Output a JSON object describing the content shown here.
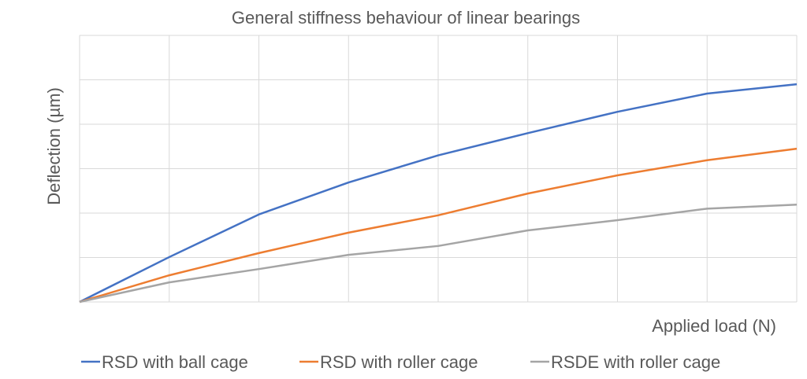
{
  "chart_data": {
    "type": "line",
    "title": "General stiffness behaviour of linear bearings",
    "xlabel": "Applied load (N)",
    "ylabel": "Deflection (µm)",
    "x": [
      0,
      1,
      2,
      3,
      4,
      5,
      6,
      7,
      8
    ],
    "xlim": [
      0,
      8
    ],
    "ylim": [
      0,
      6
    ],
    "grid": true,
    "tick_labels_shown": false,
    "legend_position": "bottom",
    "series": [
      {
        "name": "RSD with ball cage",
        "color": "#4472C4",
        "values": [
          0,
          1.01,
          1.97,
          2.69,
          3.3,
          3.8,
          4.28,
          4.69,
          4.9
        ]
      },
      {
        "name": "RSD with roller cage",
        "color": "#ED7D31",
        "values": [
          0,
          0.6,
          1.1,
          1.56,
          1.95,
          2.44,
          2.85,
          3.19,
          3.45
        ]
      },
      {
        "name": "RSDE with roller cage",
        "color": "#A5A5A5",
        "values": [
          0,
          0.44,
          0.74,
          1.06,
          1.26,
          1.61,
          1.84,
          2.1,
          2.19
        ]
      }
    ]
  }
}
